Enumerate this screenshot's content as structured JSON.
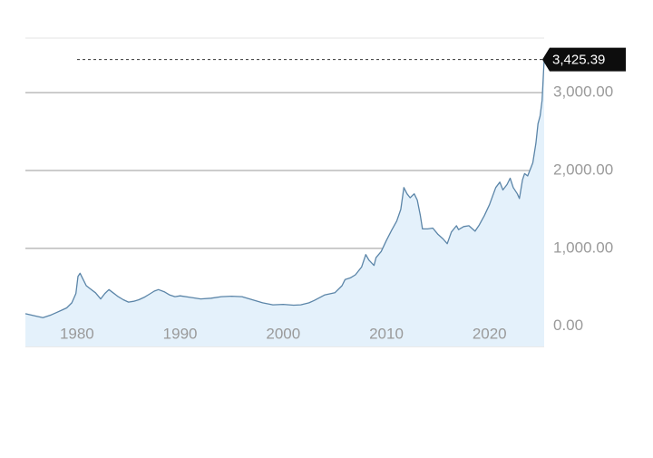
{
  "chart_data": {
    "type": "area",
    "title": "",
    "xlabel": "",
    "ylabel": "",
    "x_ticks": [
      "1980",
      "1990",
      "2000",
      "2010",
      "2020"
    ],
    "y_ticks": [
      "0.00",
      "1,000.00",
      "2,000.00",
      "3,000.00"
    ],
    "xlim": [
      1975.0,
      2025.3
    ],
    "ylim": [
      -260,
      3700
    ],
    "grid": true,
    "last_value_label": "3,425.39",
    "last_value": 3425.39,
    "colors": {
      "line": "#5b85a8",
      "fill": "#e4f1fb",
      "grid": "#9a9a9a",
      "tick_text": "#9a9a9a",
      "badge_bg": "#0d0d0d",
      "badge_text": "#ffffff"
    },
    "x": [
      1975.0,
      1976.0,
      1976.7,
      1977.5,
      1978.0,
      1978.6,
      1979.0,
      1979.5,
      1979.9,
      1980.1,
      1980.3,
      1980.6,
      1980.9,
      1981.3,
      1981.8,
      1982.3,
      1982.7,
      1983.1,
      1983.5,
      1984.0,
      1984.5,
      1985.0,
      1985.5,
      1986.0,
      1986.5,
      1987.0,
      1987.5,
      1987.9,
      1988.5,
      1989.0,
      1989.5,
      1990.0,
      1991.0,
      1992.0,
      1993.0,
      1994.0,
      1995.0,
      1996.0,
      1997.0,
      1998.0,
      1999.0,
      2000.0,
      2001.0,
      2001.7,
      2002.5,
      2003.0,
      2004.0,
      2005.0,
      2005.7,
      2006.0,
      2006.5,
      2007.0,
      2007.6,
      2008.0,
      2008.3,
      2008.8,
      2009.0,
      2009.5,
      2010.0,
      2010.5,
      2011.0,
      2011.4,
      2011.7,
      2012.0,
      2012.3,
      2012.7,
      2013.0,
      2013.3,
      2013.5,
      2014.0,
      2014.5,
      2015.0,
      2015.5,
      2015.9,
      2016.3,
      2016.8,
      2017.0,
      2017.5,
      2018.0,
      2018.6,
      2019.0,
      2019.5,
      2020.0,
      2020.3,
      2020.6,
      2021.0,
      2021.3,
      2021.7,
      2022.0,
      2022.3,
      2022.7,
      2022.9,
      2023.2,
      2023.4,
      2023.7,
      2024.0,
      2024.2,
      2024.5,
      2024.7,
      2024.9,
      2025.1,
      2025.3
    ],
    "values": [
      160,
      130,
      110,
      145,
      175,
      210,
      235,
      300,
      420,
      640,
      680,
      600,
      520,
      480,
      430,
      350,
      420,
      470,
      430,
      380,
      340,
      310,
      320,
      340,
      370,
      410,
      450,
      470,
      440,
      400,
      380,
      390,
      370,
      350,
      360,
      380,
      385,
      380,
      340,
      300,
      275,
      280,
      270,
      275,
      300,
      330,
      400,
      430,
      520,
      600,
      620,
      660,
      760,
      920,
      850,
      780,
      880,
      960,
      1100,
      1230,
      1350,
      1500,
      1780,
      1700,
      1650,
      1700,
      1620,
      1420,
      1250,
      1250,
      1260,
      1180,
      1120,
      1060,
      1210,
      1290,
      1240,
      1280,
      1290,
      1220,
      1300,
      1420,
      1560,
      1670,
      1780,
      1850,
      1750,
      1820,
      1900,
      1780,
      1700,
      1640,
      1880,
      1960,
      1930,
      2030,
      2100,
      2350,
      2600,
      2700,
      2900,
      3425.39
    ]
  }
}
